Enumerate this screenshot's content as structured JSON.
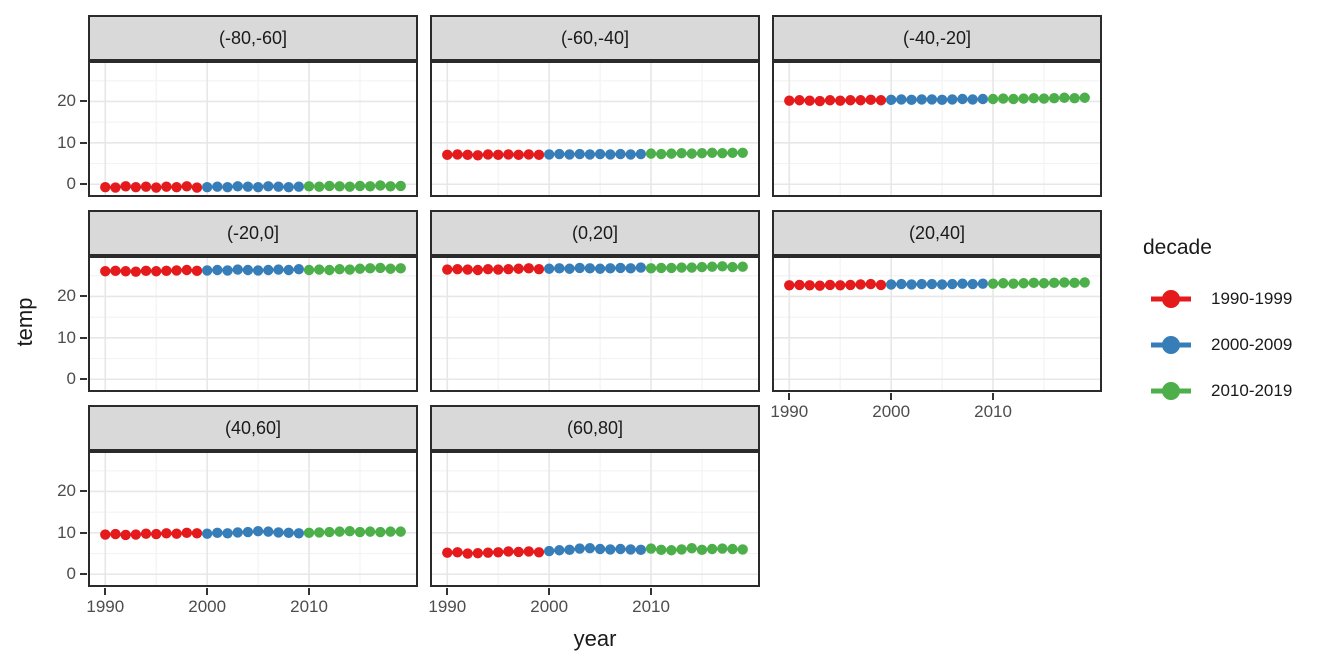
{
  "figure": {
    "x_axis_title": "year",
    "y_axis_title": "temp",
    "x_tick_labels": [
      "1990",
      "2000",
      "2010"
    ],
    "y_tick_labels": [
      "20",
      "10",
      "0"
    ]
  },
  "legend": {
    "title": "decade",
    "entries": [
      {
        "label": "1990-1999",
        "color": "#E41A1C"
      },
      {
        "label": "2000-2009",
        "color": "#377EB8"
      },
      {
        "label": "2010-2019",
        "color": "#4DAF4A"
      }
    ]
  },
  "colors": {
    "decade_1990s": "#E41A1C",
    "decade_2000s": "#377EB8",
    "decade_2010s": "#4DAF4A",
    "strip_fill": "#d9d9d9",
    "panel_border": "#2b2b2b",
    "grid_major": "#e7e7e7",
    "grid_minor": "#f3f3f3",
    "tick_text": "#4d4d4d"
  },
  "chart_data": {
    "type": "scatter",
    "title": "",
    "xlabel": "year",
    "ylabel": "temp",
    "facet_variable": "latitude band",
    "series_variable": "decade",
    "legend_position": "right",
    "grid": true,
    "xlim": [
      1988.5,
      2020.5
    ],
    "ylim": [
      -2.6,
      29.3
    ],
    "x_breaks": [
      1990,
      2000,
      2010
    ],
    "y_breaks": [
      0,
      10,
      20
    ],
    "x_minor_breaks": [
      1995,
      2005,
      2015
    ],
    "y_minor_breaks": [
      5,
      15,
      25
    ],
    "years": [
      1990,
      1991,
      1992,
      1993,
      1994,
      1995,
      1996,
      1997,
      1998,
      1999,
      2000,
      2001,
      2002,
      2003,
      2004,
      2005,
      2006,
      2007,
      2008,
      2009,
      2010,
      2011,
      2012,
      2013,
      2014,
      2015,
      2016,
      2017,
      2018,
      2019
    ],
    "decades": [
      {
        "name": "1990-1999",
        "from": 1990,
        "to": 1999,
        "color": "#E41A1C"
      },
      {
        "name": "2000-2009",
        "from": 2000,
        "to": 2009,
        "color": "#377EB8"
      },
      {
        "name": "2010-2019",
        "from": 2010,
        "to": 2019,
        "color": "#4DAF4A"
      }
    ],
    "facets": [
      {
        "label": "(-80,-60]",
        "values": [
          -0.7,
          -0.8,
          -0.5,
          -0.7,
          -0.6,
          -0.8,
          -0.6,
          -0.7,
          -0.5,
          -0.8,
          -0.7,
          -0.6,
          -0.7,
          -0.5,
          -0.6,
          -0.7,
          -0.5,
          -0.6,
          -0.7,
          -0.6,
          -0.5,
          -0.6,
          -0.4,
          -0.5,
          -0.6,
          -0.4,
          -0.5,
          -0.3,
          -0.5,
          -0.4
        ]
      },
      {
        "label": "(-60,-40]",
        "values": [
          7.1,
          7.2,
          7.1,
          7.0,
          7.2,
          7.1,
          7.2,
          7.1,
          7.2,
          7.1,
          7.2,
          7.3,
          7.2,
          7.3,
          7.2,
          7.3,
          7.2,
          7.3,
          7.2,
          7.3,
          7.4,
          7.3,
          7.4,
          7.5,
          7.4,
          7.5,
          7.6,
          7.5,
          7.6,
          7.6
        ]
      },
      {
        "label": "(-40,-20]",
        "values": [
          20.2,
          20.3,
          20.2,
          20.1,
          20.3,
          20.2,
          20.3,
          20.3,
          20.4,
          20.3,
          20.4,
          20.5,
          20.4,
          20.5,
          20.5,
          20.4,
          20.5,
          20.6,
          20.5,
          20.6,
          20.6,
          20.7,
          20.6,
          20.7,
          20.8,
          20.7,
          20.8,
          20.9,
          20.8,
          20.9
        ]
      },
      {
        "label": "(-20,0]",
        "values": [
          26.1,
          26.2,
          26.1,
          26.0,
          26.2,
          26.1,
          26.2,
          26.3,
          26.4,
          26.2,
          26.3,
          26.4,
          26.3,
          26.5,
          26.4,
          26.3,
          26.4,
          26.5,
          26.4,
          26.6,
          26.4,
          26.5,
          26.4,
          26.6,
          26.5,
          26.7,
          26.8,
          26.9,
          26.7,
          26.8
        ]
      },
      {
        "label": "(0,20]",
        "values": [
          26.5,
          26.6,
          26.5,
          26.4,
          26.6,
          26.5,
          26.6,
          26.7,
          26.8,
          26.6,
          26.7,
          26.8,
          26.7,
          26.9,
          26.8,
          26.7,
          26.8,
          26.9,
          26.8,
          27.0,
          26.8,
          26.9,
          26.9,
          27.0,
          27.0,
          27.1,
          27.2,
          27.3,
          27.1,
          27.2
        ]
      },
      {
        "label": "(20,40]",
        "values": [
          22.7,
          22.8,
          22.7,
          22.6,
          22.8,
          22.7,
          22.8,
          22.9,
          23.0,
          22.8,
          22.9,
          23.0,
          22.9,
          23.0,
          23.0,
          22.9,
          23.0,
          23.1,
          23.0,
          23.1,
          23.1,
          23.2,
          23.1,
          23.2,
          23.3,
          23.2,
          23.3,
          23.4,
          23.3,
          23.4
        ]
      },
      {
        "label": "(40,60]",
        "values": [
          9.6,
          9.7,
          9.5,
          9.6,
          9.8,
          9.7,
          9.9,
          9.8,
          10.0,
          9.9,
          9.8,
          10.0,
          9.9,
          10.1,
          10.2,
          10.4,
          10.3,
          10.1,
          10.0,
          9.9,
          10.0,
          10.1,
          10.2,
          10.3,
          10.4,
          10.2,
          10.3,
          10.2,
          10.3,
          10.3
        ]
      },
      {
        "label": "(60,80]",
        "values": [
          5.2,
          5.3,
          5.0,
          5.1,
          5.2,
          5.3,
          5.5,
          5.4,
          5.5,
          5.3,
          5.6,
          5.8,
          5.9,
          6.2,
          6.3,
          6.1,
          6.0,
          6.1,
          6.0,
          5.9,
          6.2,
          5.9,
          5.8,
          6.0,
          6.3,
          5.9,
          6.1,
          6.2,
          6.1,
          6.0
        ]
      }
    ]
  }
}
